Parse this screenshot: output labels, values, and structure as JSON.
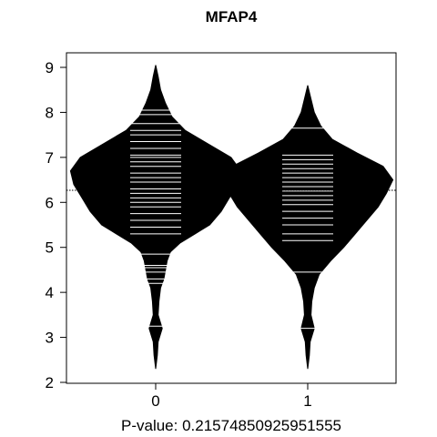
{
  "chart_data": {
    "type": "beanplot",
    "title": "MFAP4",
    "xlabel": "P-value: 0.21574850925951555",
    "ylabel": "",
    "ylim": [
      2,
      9.3
    ],
    "yticks": [
      "2",
      "3",
      "4",
      "5",
      "6",
      "7",
      "8",
      "9"
    ],
    "categories": [
      "0",
      "1"
    ],
    "overall_mean": 6.27,
    "groups": [
      {
        "category": "0",
        "mean": 6.35,
        "min": 2.3,
        "max": 9.05,
        "density_profile": [
          [
            2.3,
            0.0
          ],
          [
            2.6,
            0.01
          ],
          [
            2.9,
            0.015
          ],
          [
            3.2,
            0.04
          ],
          [
            3.5,
            0.015
          ],
          [
            3.8,
            0.02
          ],
          [
            4.1,
            0.03
          ],
          [
            4.3,
            0.05
          ],
          [
            4.5,
            0.06
          ],
          [
            4.7,
            0.07
          ],
          [
            4.9,
            0.09
          ],
          [
            5.1,
            0.15
          ],
          [
            5.3,
            0.24
          ],
          [
            5.5,
            0.33
          ],
          [
            5.8,
            0.4
          ],
          [
            6.1,
            0.45
          ],
          [
            6.4,
            0.5
          ],
          [
            6.7,
            0.52
          ],
          [
            7.0,
            0.46
          ],
          [
            7.3,
            0.32
          ],
          [
            7.6,
            0.18
          ],
          [
            7.9,
            0.1
          ],
          [
            8.2,
            0.06
          ],
          [
            8.5,
            0.03
          ],
          [
            8.8,
            0.015
          ],
          [
            9.05,
            0.0
          ]
        ],
        "observations": [
          3.25,
          4.2,
          4.3,
          4.45,
          4.55,
          4.6,
          4.85,
          5.3,
          5.45,
          5.6,
          5.75,
          5.9,
          6.0,
          6.1,
          6.2,
          6.3,
          6.45,
          6.55,
          6.65,
          6.8,
          6.9,
          7.0,
          7.05,
          7.2,
          7.35,
          7.5,
          7.6,
          7.75,
          7.95,
          8.05
        ]
      },
      {
        "category": "1",
        "mean": 6.1,
        "min": 2.3,
        "max": 8.6,
        "density_profile": [
          [
            2.3,
            0.0
          ],
          [
            2.6,
            0.01
          ],
          [
            2.9,
            0.015
          ],
          [
            3.2,
            0.04
          ],
          [
            3.5,
            0.02
          ],
          [
            3.8,
            0.025
          ],
          [
            4.1,
            0.04
          ],
          [
            4.4,
            0.07
          ],
          [
            4.7,
            0.14
          ],
          [
            5.0,
            0.22
          ],
          [
            5.3,
            0.29
          ],
          [
            5.6,
            0.36
          ],
          [
            5.9,
            0.43
          ],
          [
            6.2,
            0.48
          ],
          [
            6.5,
            0.52
          ],
          [
            6.8,
            0.46
          ],
          [
            7.1,
            0.3
          ],
          [
            7.4,
            0.15
          ],
          [
            7.7,
            0.08
          ],
          [
            8.0,
            0.04
          ],
          [
            8.3,
            0.02
          ],
          [
            8.6,
            0.0
          ]
        ],
        "observations": [
          3.2,
          4.45,
          5.15,
          5.3,
          5.5,
          5.65,
          5.8,
          5.95,
          6.05,
          6.15,
          6.25,
          6.35,
          6.45,
          6.55,
          6.65,
          6.75,
          6.85,
          6.95,
          7.05,
          7.65
        ]
      }
    ]
  }
}
